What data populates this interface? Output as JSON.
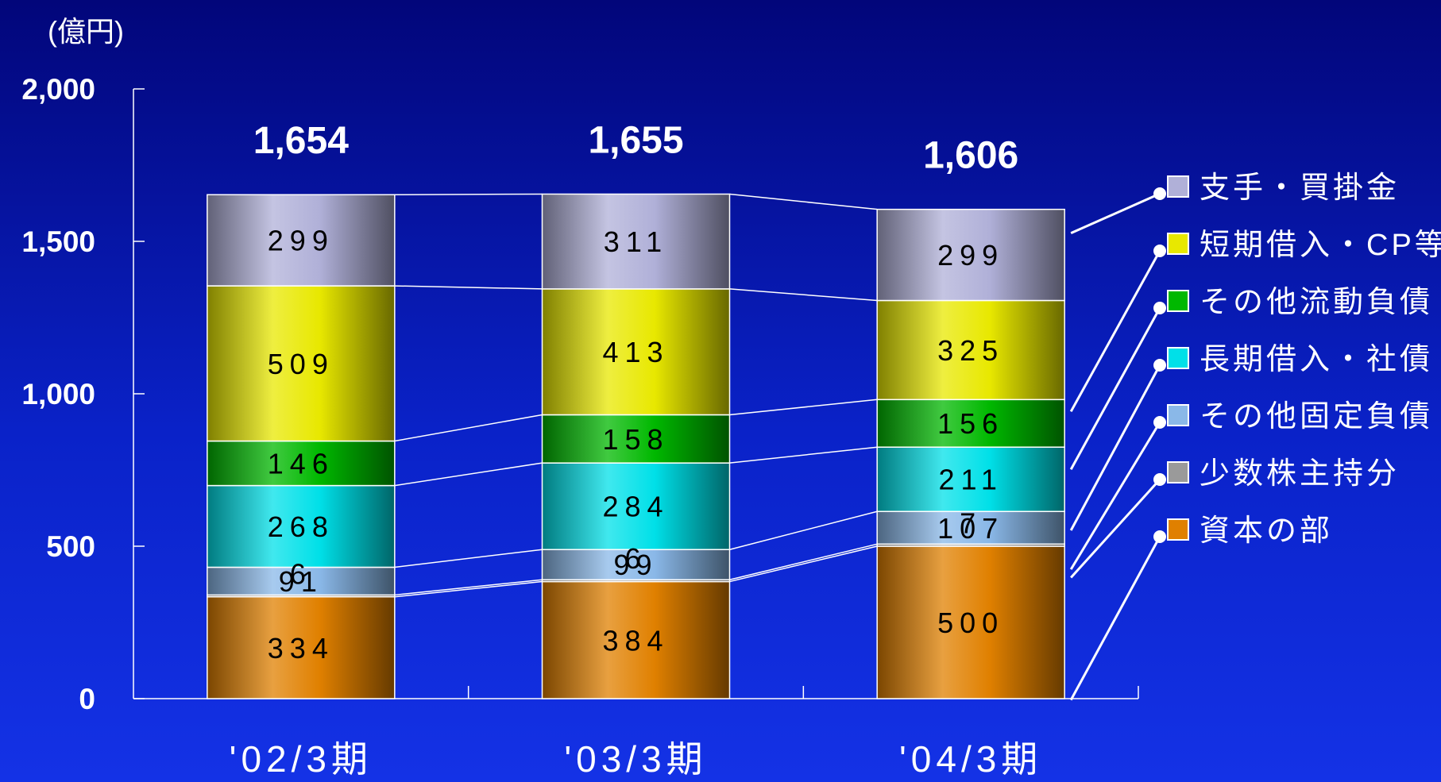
{
  "chart_data": {
    "type": "bar",
    "stacked": true,
    "unit_label": "(億円)",
    "categories": [
      "'02/3期",
      "'03/3期",
      "'04/3期"
    ],
    "totals": [
      1654,
      1655,
      1606
    ],
    "total_labels": [
      "1,654",
      "1,655",
      "1,606"
    ],
    "ylim": [
      0,
      2000
    ],
    "y_ticks": [
      0,
      500,
      1000,
      1500,
      2000
    ],
    "y_tick_labels": [
      "0",
      "500",
      "1,000",
      "1,500",
      "2,000"
    ],
    "series": [
      {
        "name": "資本の部",
        "values": [
          334,
          384,
          500
        ],
        "color": "#e08000"
      },
      {
        "name": "少数株主持分",
        "values": [
          6,
          6,
          7
        ],
        "color": "#9a9a9a"
      },
      {
        "name": "その他固定負債",
        "values": [
          91,
          99,
          107
        ],
        "color": "#8ab8e8"
      },
      {
        "name": "長期借入・社債",
        "values": [
          268,
          284,
          211
        ],
        "color": "#00e0e8"
      },
      {
        "name": "その他流動負債",
        "values": [
          146,
          158,
          156
        ],
        "color": "#00b800"
      },
      {
        "name": "短期借入・CP等",
        "values": [
          509,
          413,
          325
        ],
        "color": "#e8e800"
      },
      {
        "name": "支手・買掛金",
        "values": [
          299,
          311,
          299
        ],
        "color": "#b0b0d8"
      }
    ],
    "legend_order_top_to_bottom": [
      "支手・買掛金",
      "短期借入・CP等",
      "その他流動負債",
      "長期借入・社債",
      "その他固定負債",
      "少数株主持分",
      "資本の部"
    ],
    "legend_position": "right",
    "grid": false
  }
}
